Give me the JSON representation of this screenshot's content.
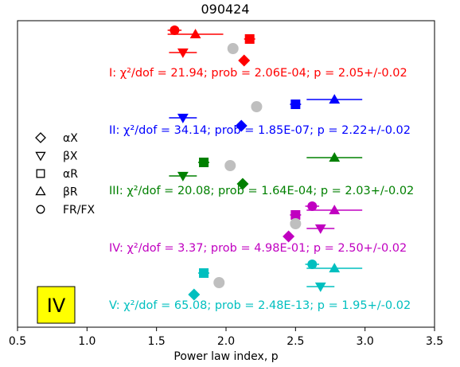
{
  "chart_data": {
    "type": "scatter",
    "title": "090424",
    "xlabel": "Power law index, p",
    "ylabel": "",
    "xlim": [
      0.5,
      3.5
    ],
    "xticks": [
      "0.5",
      "1.0",
      "1.5",
      "2.0",
      "2.5",
      "3.0",
      "3.5"
    ],
    "y_ticks_shown": false,
    "badge": "IV",
    "badge_color": "#ffff00",
    "legend": {
      "placement": "left",
      "entries": [
        {
          "marker": "diamond",
          "label": "αX"
        },
        {
          "marker": "triangle-down",
          "label": "βX"
        },
        {
          "marker": "square",
          "label": "αR"
        },
        {
          "marker": "triangle-up",
          "label": "βR"
        },
        {
          "marker": "circle",
          "label": "FR/FX"
        }
      ]
    },
    "groups": [
      {
        "id": "I",
        "color": "#ff0000",
        "text": "I: χ²/dof = 21.94; prob = 2.06E-04; p = 2.05+/-0.02",
        "points": [
          {
            "param": "FR/FX",
            "marker": "circle",
            "p": 1.63,
            "err": 0.05
          },
          {
            "param": "βR",
            "marker": "triangle-up",
            "p": 1.78,
            "err": 0.2
          },
          {
            "param": "αR",
            "marker": "square",
            "p": 2.17,
            "err": 0.04
          },
          {
            "param": "βX",
            "marker": "triangle-down",
            "p": 1.69,
            "err": 0.1
          },
          {
            "param": "αX",
            "marker": "diamond",
            "p": 2.13,
            "err": 0.0
          }
        ],
        "best_p": 2.05
      },
      {
        "id": "II",
        "color": "#0000ff",
        "text": "II: χ²/dof = 34.14; prob = 1.85E-07; p = 2.22+/-0.02",
        "points": [
          {
            "param": "βR",
            "marker": "triangle-up",
            "p": 2.78,
            "err": 0.2
          },
          {
            "param": "αR",
            "marker": "square",
            "p": 2.5,
            "err": 0.04
          },
          {
            "param": "βX",
            "marker": "triangle-down",
            "p": 1.69,
            "err": 0.1
          },
          {
            "param": "αX",
            "marker": "diamond",
            "p": 2.11,
            "err": 0.0
          }
        ],
        "best_p": 2.22
      },
      {
        "id": "III",
        "color": "#008000",
        "text": "III: χ²/dof = 20.08; prob = 1.64E-04; p = 2.03+/-0.02",
        "points": [
          {
            "param": "βR",
            "marker": "triangle-up",
            "p": 2.78,
            "err": 0.2
          },
          {
            "param": "αR",
            "marker": "square",
            "p": 1.84,
            "err": 0.04
          },
          {
            "param": "βX",
            "marker": "triangle-down",
            "p": 1.69,
            "err": 0.1
          },
          {
            "param": "αX",
            "marker": "diamond",
            "p": 2.12,
            "err": 0.0
          }
        ],
        "best_p": 2.03
      },
      {
        "id": "IV",
        "color": "#c000c0",
        "text": "IV: χ²/dof = 3.37; prob = 4.98E-01; p = 2.50+/-0.02",
        "points": [
          {
            "param": "FR/FX",
            "marker": "circle",
            "p": 2.62,
            "err": 0.05
          },
          {
            "param": "βR",
            "marker": "triangle-up",
            "p": 2.78,
            "err": 0.2
          },
          {
            "param": "αR",
            "marker": "square",
            "p": 2.5,
            "err": 0.04
          },
          {
            "param": "βX",
            "marker": "triangle-down",
            "p": 2.68,
            "err": 0.1
          },
          {
            "param": "αX",
            "marker": "diamond",
            "p": 2.45,
            "err": 0.0
          }
        ],
        "best_p": 2.5
      },
      {
        "id": "V",
        "color": "#00bfbf",
        "text": "V: χ²/dof = 65.08; prob = 2.48E-13; p = 1.95+/-0.02",
        "points": [
          {
            "param": "FR/FX",
            "marker": "circle",
            "p": 2.62,
            "err": 0.05
          },
          {
            "param": "βR",
            "marker": "triangle-up",
            "p": 2.78,
            "err": 0.2
          },
          {
            "param": "αR",
            "marker": "square",
            "p": 1.84,
            "err": 0.04
          },
          {
            "param": "βX",
            "marker": "triangle-down",
            "p": 2.68,
            "err": 0.1
          },
          {
            "param": "αX",
            "marker": "diamond",
            "p": 1.77,
            "err": 0.0
          }
        ],
        "best_p": 1.95
      }
    ],
    "best_fit_color": "#bfbfbf"
  }
}
